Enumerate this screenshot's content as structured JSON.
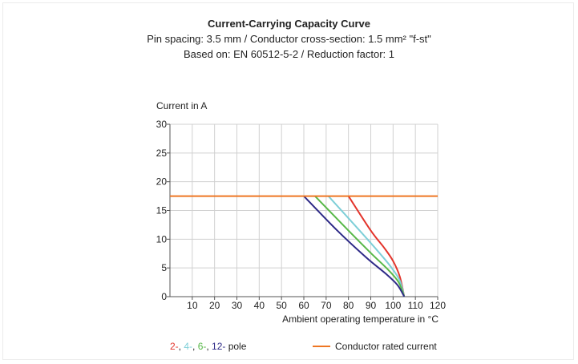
{
  "chart_data": {
    "type": "line",
    "title": "Current-Carrying Capacity Curve",
    "subtitle_1": "Pin spacing: 3.5 mm / Conductor cross-section: 1.5 mm² \"f-st\"",
    "subtitle_2": "Based on: EN 60512-5-2 / Reduction factor: 1",
    "ylabel": "Current in A",
    "xlabel": "Ambient operating temperature in °C",
    "xlim": [
      0,
      120
    ],
    "ylim": [
      0,
      30
    ],
    "x_ticks": [
      "10",
      "20",
      "30",
      "40",
      "50",
      "60",
      "70",
      "80",
      "90",
      "100",
      "110",
      "120"
    ],
    "y_ticks": [
      "0",
      "5",
      "10",
      "15",
      "20",
      "25",
      "30"
    ],
    "grid": true,
    "series": [
      {
        "name": "2-",
        "color": "#e3342b",
        "points": [
          [
            80,
            17.5
          ],
          [
            90,
            11.5
          ],
          [
            96,
            8.5
          ],
          [
            100,
            6.2
          ],
          [
            103,
            3.5
          ],
          [
            105,
            0
          ]
        ]
      },
      {
        "name": "4-",
        "color": "#7ecfd8",
        "points": [
          [
            71,
            17.5
          ],
          [
            85,
            11.5
          ],
          [
            93,
            8.0
          ],
          [
            99,
            5.2
          ],
          [
            103,
            2.8
          ],
          [
            105,
            0
          ]
        ]
      },
      {
        "name": "6-",
        "color": "#58b848",
        "points": [
          [
            65,
            17.5
          ],
          [
            80,
            11.5
          ],
          [
            90,
            7.6
          ],
          [
            98,
            4.6
          ],
          [
            102.5,
            2.5
          ],
          [
            105,
            0
          ]
        ]
      },
      {
        "name": "12-",
        "color": "#2e2a87",
        "points": [
          [
            60,
            17.5
          ],
          [
            75,
            11.5
          ],
          [
            88,
            6.8
          ],
          [
            97,
            3.9
          ],
          [
            102,
            2.0
          ],
          [
            105,
            0
          ]
        ]
      },
      {
        "name": "Conductor rated current",
        "color": "#ee7623",
        "points": [
          [
            0,
            17.5
          ],
          [
            120,
            17.5
          ]
        ]
      }
    ]
  },
  "legend": {
    "poles": [
      {
        "label": "2-",
        "color": "#e3342b"
      },
      {
        "label": ", ",
        "color": "#222222"
      },
      {
        "label": "4-",
        "color": "#7ecfd8"
      },
      {
        "label": ", ",
        "color": "#222222"
      },
      {
        "label": "6-",
        "color": "#58b848"
      },
      {
        "label": ", ",
        "color": "#222222"
      },
      {
        "label": "12-",
        "color": "#2e2a87"
      },
      {
        "label": " pole",
        "color": "#222222"
      }
    ],
    "rated_label": "Conductor rated current",
    "rated_color": "#ee7623"
  }
}
